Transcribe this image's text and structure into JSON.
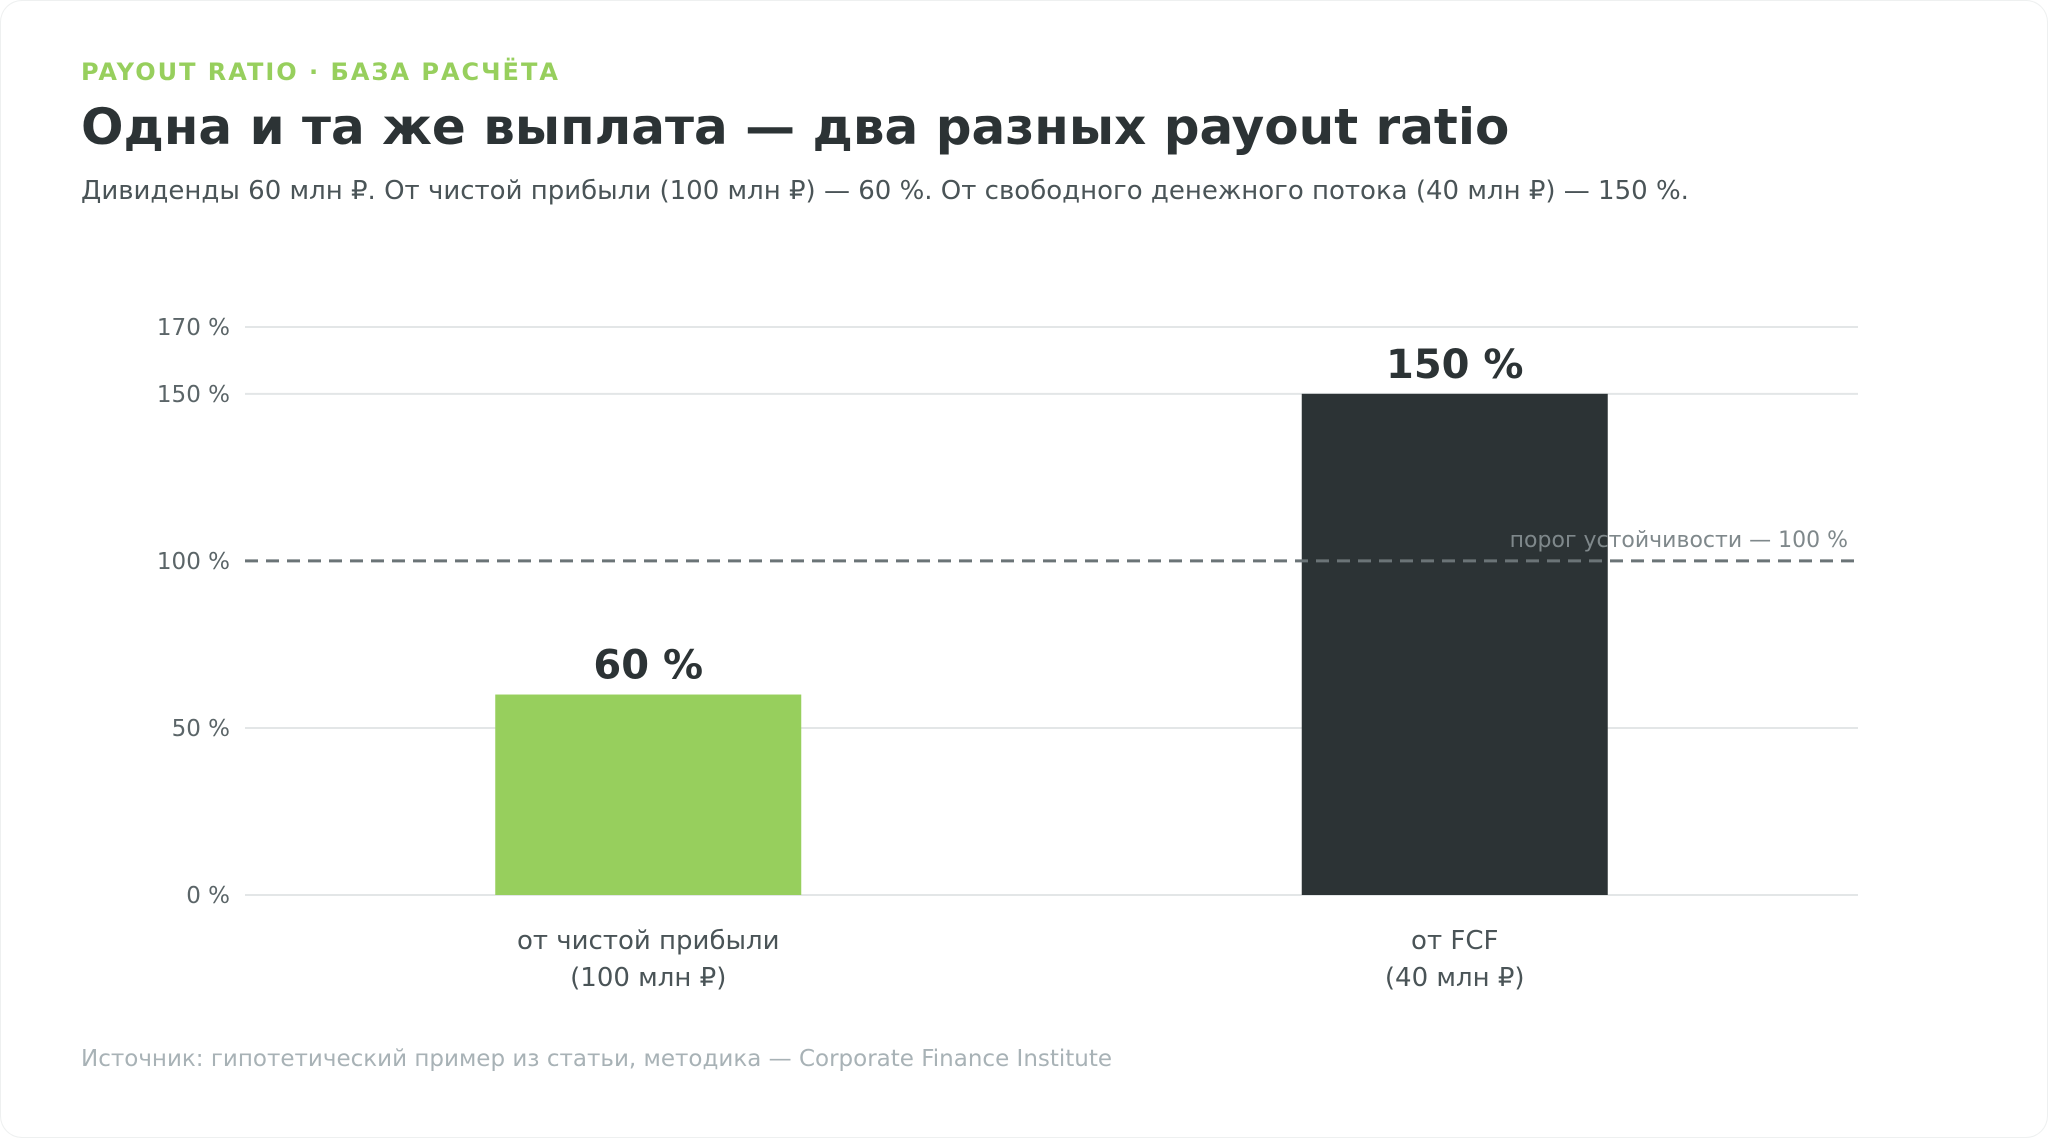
{
  "header": {
    "kicker": "PAYOUT RATIO · БАЗА РАСЧЁТА",
    "title": "Одна и та же выплата — два разных payout ratio",
    "subtitle": "Дивиденды 60 млн ₽. От чистой прибыли (100 млн ₽) — 60 %. От свободного денежного потока (40 млн ₽) — 150 %."
  },
  "footer": {
    "source": "Источник: гипотетический пример из статьи, методика — Corporate Finance Institute"
  },
  "colors": {
    "accent_green": "#97cf5d",
    "dark": "#2c3335",
    "grid": "#e3e6e7",
    "reference_line": "#6b7477"
  },
  "chart_data": {
    "type": "bar",
    "categories": [
      [
        "от чистой прибыли",
        "(100 млн ₽)"
      ],
      [
        "от FCF",
        "(40 млн ₽)"
      ]
    ],
    "values": [
      60,
      150
    ],
    "value_labels": [
      "60 %",
      "150 %"
    ],
    "bar_colors": [
      "#97cf5d",
      "#2c3335"
    ],
    "ylim": [
      0,
      170
    ],
    "yticks": [
      0,
      50,
      100,
      150,
      170
    ],
    "ytick_labels": [
      "0 %",
      "50 %",
      "100 %",
      "150 %",
      "170 %"
    ],
    "grid": true,
    "reference_line": {
      "value": 100,
      "label": "порог устойчивости — 100 %",
      "style": "dashed"
    },
    "legend": "none"
  }
}
